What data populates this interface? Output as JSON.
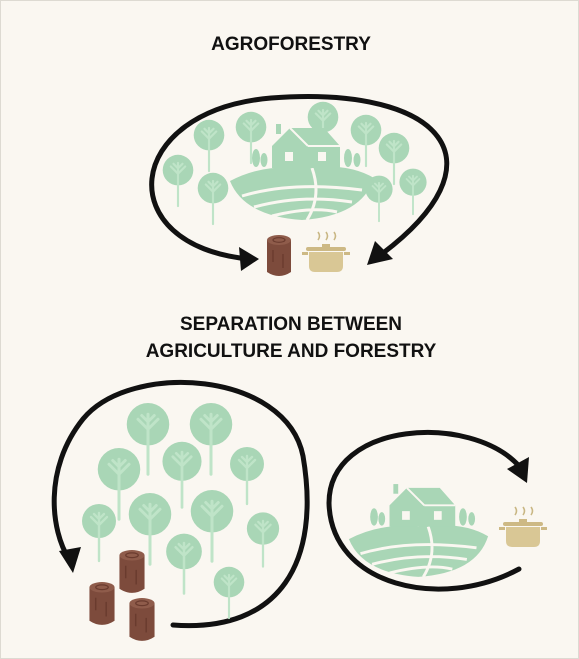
{
  "sections": [
    {
      "title": "AGROFORESTRY"
    },
    {
      "title": "SEPARATION BETWEEN AGRICULTURE AND FORESTRY"
    }
  ]
}
